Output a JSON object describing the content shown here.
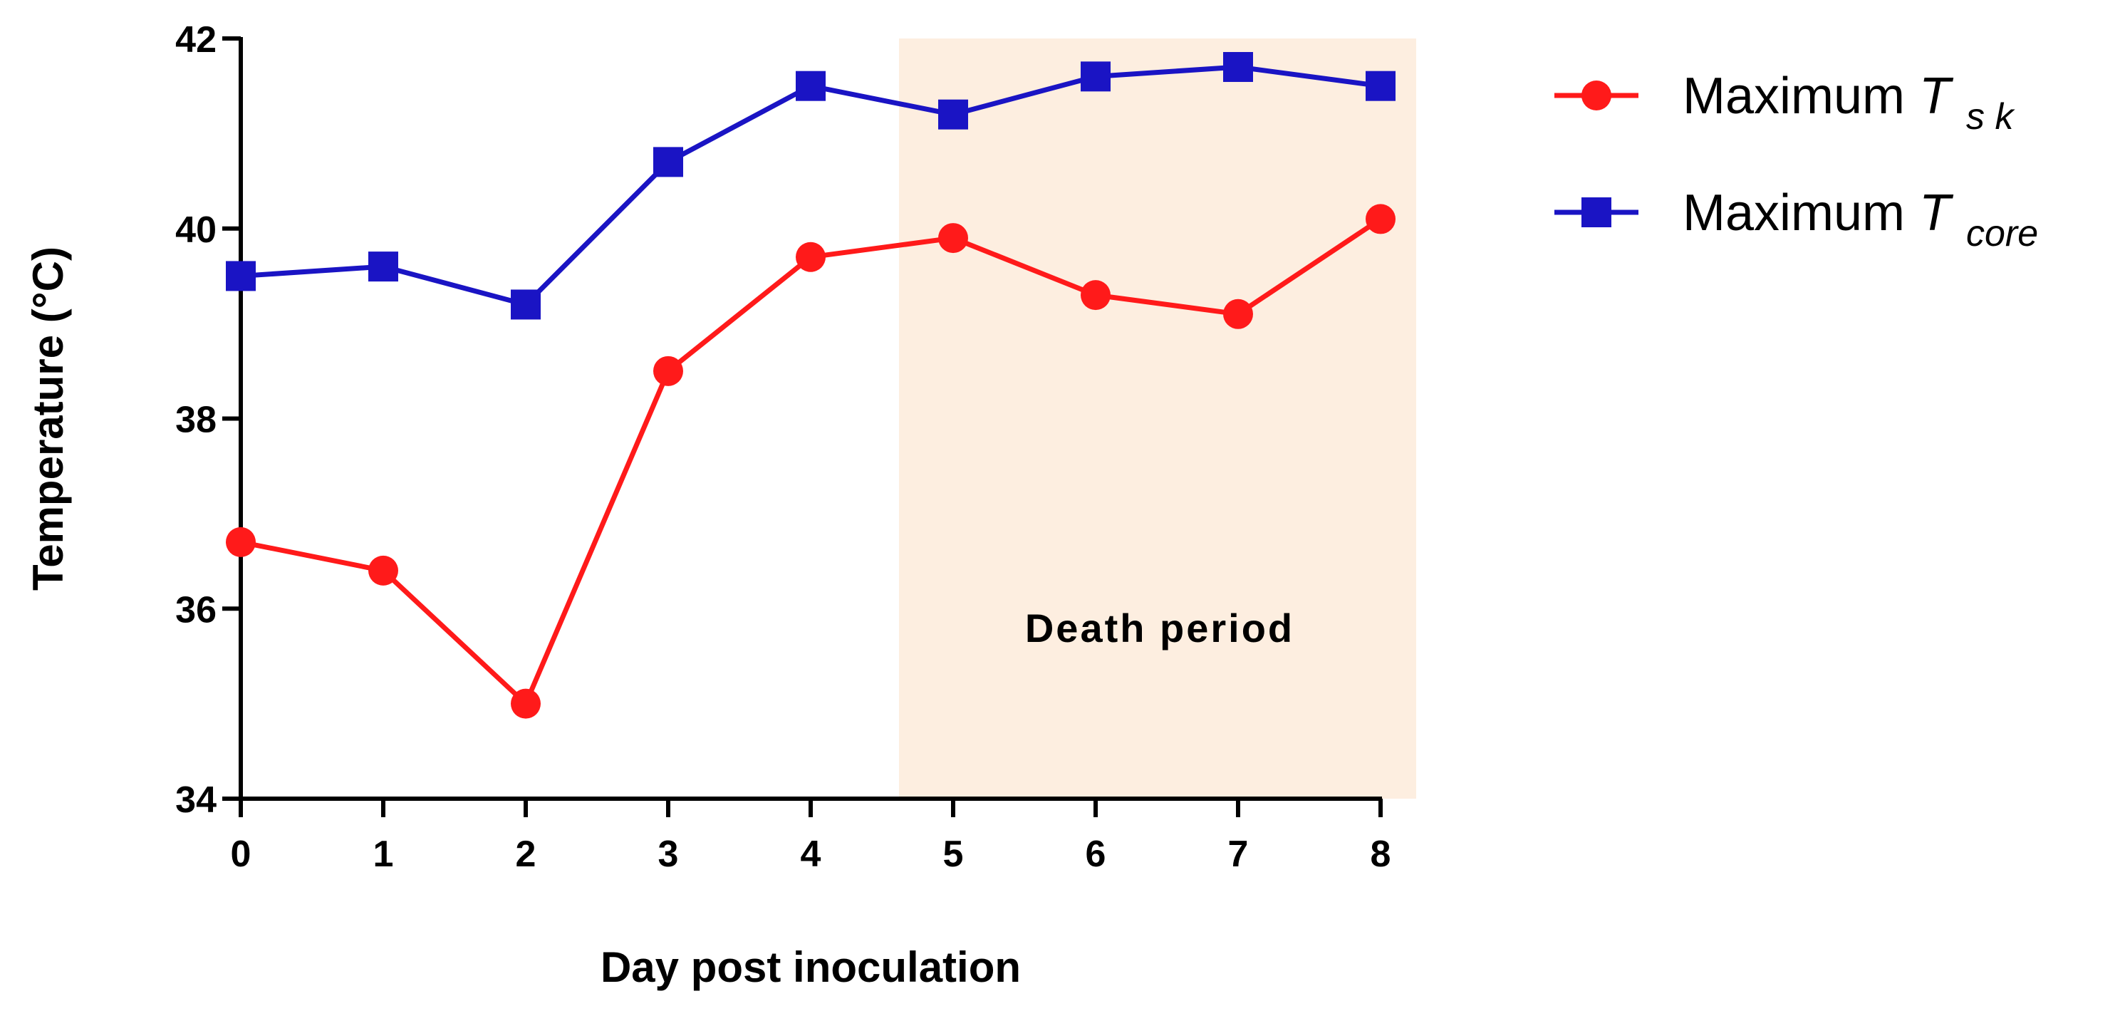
{
  "chart_data": {
    "type": "line",
    "title": "",
    "xlabel": "Day post inoculation",
    "ylabel": "Temperature (°C)",
    "x": [
      0,
      1,
      2,
      3,
      4,
      5,
      6,
      7,
      8
    ],
    "xlim": [
      0,
      8
    ],
    "ylim": [
      34,
      42
    ],
    "xticks": [
      "0",
      "1",
      "2",
      "3",
      "4",
      "5",
      "6",
      "7",
      "8"
    ],
    "yticks": [
      "34",
      "36",
      "38",
      "40",
      "42"
    ],
    "grid": false,
    "legend_position": "top-right outside",
    "series": [
      {
        "name": "Maximum T sk",
        "legend_prefix": "Maximum ",
        "legend_var": "T",
        "legend_sub": "s k",
        "marker": "circle",
        "color": "#ff1a1a",
        "values": [
          36.7,
          36.4,
          35.0,
          38.5,
          39.7,
          39.9,
          39.3,
          39.1,
          40.1
        ]
      },
      {
        "name": "Maximum T core",
        "legend_prefix": "Maximum ",
        "legend_var": "T",
        "legend_sub": "core",
        "marker": "square",
        "color": "#1a14c4",
        "values": [
          39.5,
          39.6,
          39.2,
          40.7,
          41.5,
          41.2,
          41.6,
          41.7,
          41.5
        ]
      }
    ],
    "shaded_region": {
      "label": "Death period",
      "x_from": 4.62,
      "x_to": 8.25,
      "color": "#fdeee0"
    },
    "annotations": [
      {
        "text": "Death period",
        "x": 6.45,
        "y": 35.8
      }
    ]
  }
}
